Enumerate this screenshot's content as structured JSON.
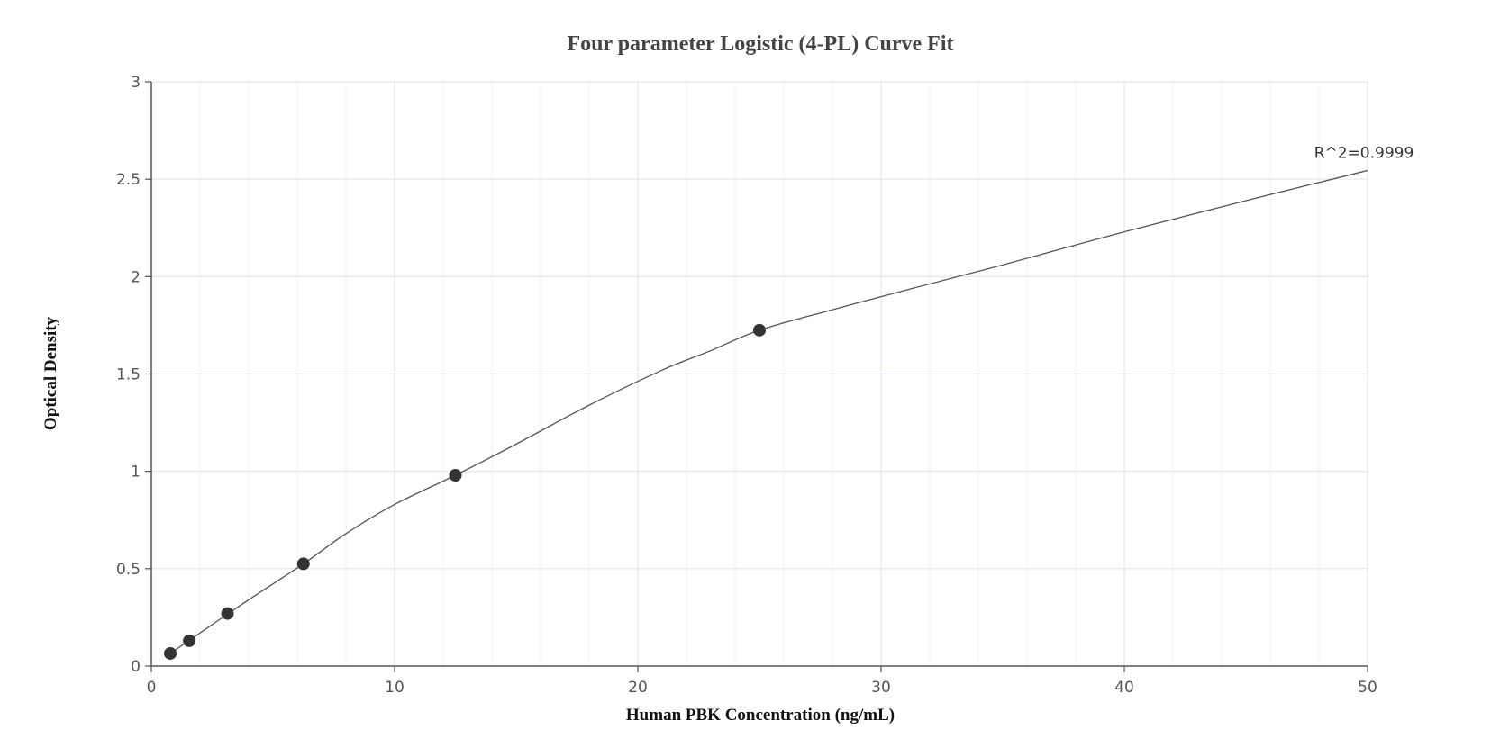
{
  "chart_data": {
    "type": "scatter",
    "title": "Four parameter Logistic (4-PL) Curve Fit",
    "xlabel": "Human PBK Concentration (ng/mL)",
    "ylabel": "Optical Density",
    "xlim": [
      0,
      50
    ],
    "ylim": [
      0,
      3
    ],
    "x_ticks": [
      0,
      10,
      20,
      30,
      40,
      50
    ],
    "x_tick_labels": [
      "0",
      "10",
      "20",
      "30",
      "40",
      "50"
    ],
    "y_ticks": [
      0,
      0.5,
      1,
      1.5,
      2,
      2.5,
      3
    ],
    "y_tick_labels": [
      "0",
      "0.5",
      "1",
      "1.5",
      "2",
      "2.5",
      "3"
    ],
    "x_minor_step": 2,
    "grid": true,
    "legend": "none",
    "points": [
      {
        "x": 0.78,
        "y": 0.065
      },
      {
        "x": 1.56,
        "y": 0.13
      },
      {
        "x": 3.13,
        "y": 0.27
      },
      {
        "x": 6.25,
        "y": 0.525
      },
      {
        "x": 12.5,
        "y": 0.98
      },
      {
        "x": 25,
        "y": 1.725
      }
    ],
    "fit_curve": [
      {
        "x": 0.78,
        "y": 0.065
      },
      {
        "x": 2,
        "y": 0.17
      },
      {
        "x": 4,
        "y": 0.34
      },
      {
        "x": 6.25,
        "y": 0.525
      },
      {
        "x": 8,
        "y": 0.68
      },
      {
        "x": 10,
        "y": 0.83
      },
      {
        "x": 12.5,
        "y": 0.98
      },
      {
        "x": 15,
        "y": 1.14
      },
      {
        "x": 18,
        "y": 1.34
      },
      {
        "x": 21,
        "y": 1.52
      },
      {
        "x": 23,
        "y": 1.62
      },
      {
        "x": 25,
        "y": 1.725
      },
      {
        "x": 28,
        "y": 1.83
      },
      {
        "x": 31,
        "y": 1.93
      },
      {
        "x": 35,
        "y": 2.06
      },
      {
        "x": 40,
        "y": 2.23
      },
      {
        "x": 45,
        "y": 2.39
      },
      {
        "x": 50,
        "y": 2.545
      }
    ],
    "annotation": "R^2=0.9999",
    "colors": {
      "point": "#333333",
      "curve": "#555555",
      "grid_major": "#e3e6ee",
      "grid_minor": "#f1f2f6",
      "axis": "#555555"
    }
  }
}
